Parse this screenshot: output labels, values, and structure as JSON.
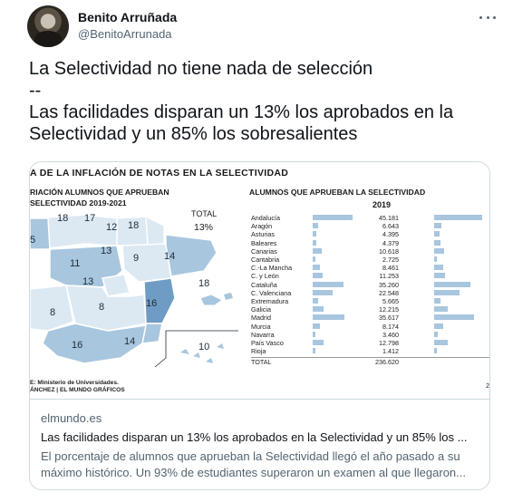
{
  "author": {
    "display_name": "Benito Arruñada",
    "handle": "@BenitoArrunada",
    "more_icon": "more-horizontal-icon"
  },
  "tweet": {
    "text": "La Selectividad no tiene nada de selección\n--\nLas facilidades disparan un 13% los aprobados en la Selectividad y un 85% los sobresalientes"
  },
  "card": {
    "domain": "elmundo.es",
    "title": "Las facilidades disparan un 13% los aprobados en la Selectividad y un 85% los ...",
    "description": "El porcentaje de alumnos que aprueban la Selectividad llegó el año pasado a su máximo histórico. Un 93% de estudiantes superaron un examen al que llegaron..."
  },
  "graphic": {
    "title": "A DE LA INFLACIÓN DE NOTAS EN LA SELECTIVIDAD",
    "left_title": "RIACIÓN ALUMNOS QUE APRUEBAN\nSELECTIVIDAD 2019-2021",
    "total_label": "TOTAL",
    "total_value": "13%",
    "right_title": "ALUMNOS QUE APRUEBAN LA SELECTIVIDAD",
    "year": "2019",
    "source": "E: Ministerio de Universidades.\nÁNCHEZ | EL MUNDO GRÁFICOS",
    "map_labels": [
      "18",
      "17",
      "12",
      "18",
      "5",
      "13",
      "11",
      "9",
      "14",
      "13",
      "18",
      "8",
      "8",
      "16",
      "16",
      "14",
      "10"
    ],
    "map_colors": {
      "light": "#dce8f2",
      "mid": "#a8c6de",
      "dark": "#6f9cc4"
    },
    "rows": [
      {
        "name": "Andalucía",
        "value": "45.181",
        "v": 45181,
        "v2": 0.95
      },
      {
        "name": "Aragón",
        "value": "6.643",
        "v": 6643,
        "v2": 0.14
      },
      {
        "name": "Asturias",
        "value": "4.395",
        "v": 4395,
        "v2": 0.11
      },
      {
        "name": "Baleares",
        "value": "4.379",
        "v": 4379,
        "v2": 0.12
      },
      {
        "name": "Canarias",
        "value": "10.618",
        "v": 10618,
        "v2": 0.2
      },
      {
        "name": "Cantabria",
        "value": "2.725",
        "v": 2725,
        "v2": 0.06
      },
      {
        "name": "C.-La Mancha",
        "value": "8.461",
        "v": 8461,
        "v2": 0.18
      },
      {
        "name": "C. y León",
        "value": "11.253",
        "v": 11253,
        "v2": 0.22
      },
      {
        "name": "Cataluña",
        "value": "35.260",
        "v": 35260,
        "v2": 0.72
      },
      {
        "name": "C. Valenciana",
        "value": "22.548",
        "v": 22548,
        "v2": 0.5
      },
      {
        "name": "Extremadura",
        "value": "5.665",
        "v": 5665,
        "v2": 0.12
      },
      {
        "name": "Galicia",
        "value": "12.215",
        "v": 12215,
        "v2": 0.26
      },
      {
        "name": "Madrid",
        "value": "35.617",
        "v": 35617,
        "v2": 0.78
      },
      {
        "name": "Murcia",
        "value": "8.174",
        "v": 8174,
        "v2": 0.17
      },
      {
        "name": "Navarra",
        "value": "3.460",
        "v": 3460,
        "v2": 0.08
      },
      {
        "name": "País Vasco",
        "value": "12.798",
        "v": 12798,
        "v2": 0.27
      },
      {
        "name": "Rioja",
        "value": "1.412",
        "v": 1412,
        "v2": 0.03
      },
      {
        "name": "TOTAL",
        "value": "236.620",
        "v": 0,
        "v2": 0
      }
    ],
    "edge_text": "2"
  }
}
